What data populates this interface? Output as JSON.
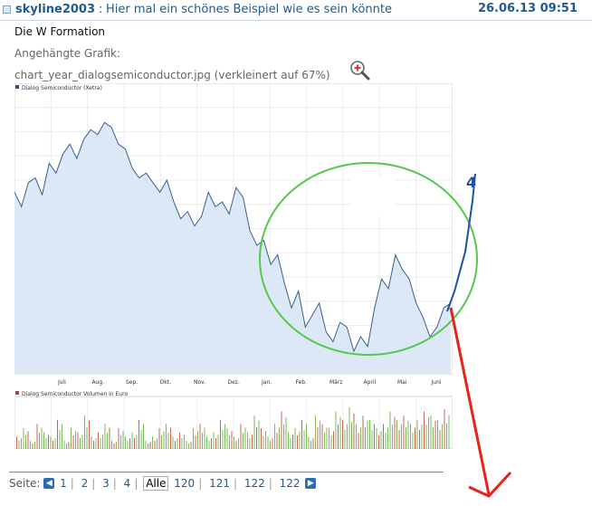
{
  "post": {
    "username": "skyline2003",
    "separator": ":",
    "subject": "Hier mal ein schönes Beispiel wie es sein könnte",
    "date": "26.06.13 09:51",
    "body_title": "Die W Formation",
    "attachment_label": "Angehängte Grafik:",
    "attachment_file": "chart_year_dialogsemiconductor.jpg (verkleinert auf 67%)"
  },
  "chart_data": {
    "type": "area",
    "title": "Dialog Semiconductor (Xetra)",
    "volume_title": "Dialog Semiconductor Volumen in Euro",
    "x_ticks": [
      "Juli",
      "Aug.",
      "Sep.",
      "Okt.",
      "Nov.",
      "Dez.",
      "Jan.",
      "Feb.",
      "März",
      "April",
      "Mai",
      "Juni"
    ],
    "price_series": {
      "name": "Dialog Semiconductor (Xetra)",
      "values": [
        0.66,
        0.6,
        0.7,
        0.72,
        0.65,
        0.78,
        0.74,
        0.82,
        0.86,
        0.8,
        0.88,
        0.92,
        0.9,
        0.95,
        0.93,
        0.86,
        0.84,
        0.76,
        0.72,
        0.74,
        0.7,
        0.66,
        0.71,
        0.62,
        0.55,
        0.58,
        0.52,
        0.56,
        0.66,
        0.6,
        0.62,
        0.57,
        0.68,
        0.64,
        0.5,
        0.44,
        0.46,
        0.36,
        0.4,
        0.28,
        0.18,
        0.25,
        0.1,
        0.15,
        0.2,
        0.08,
        0.04,
        0.12,
        0.1,
        0.0,
        0.06,
        0.02,
        0.18,
        0.3,
        0.26,
        0.4,
        0.34,
        0.3,
        0.2,
        0.14,
        0.06,
        0.1,
        0.18,
        0.2
      ]
    },
    "volume_series": {
      "name": "Dialog Semiconductor Volumen in Euro",
      "values": [
        0.3,
        0.5,
        0.2,
        0.6,
        0.4,
        0.3,
        0.7,
        0.2,
        0.5,
        0.4,
        0.8,
        0.3,
        0.4,
        0.6,
        0.2,
        0.5,
        0.3,
        0.4,
        0.7,
        0.2,
        0.3,
        0.5,
        0.6,
        0.3,
        0.4,
        0.2,
        0.5,
        0.6,
        0.3,
        0.4,
        0.7,
        0.5,
        0.3,
        0.6,
        0.4,
        0.8,
        0.5,
        0.3,
        0.6,
        0.9,
        0.4,
        0.5,
        0.7,
        0.3,
        0.8,
        0.6,
        0.5,
        0.9,
        0.7,
        1.0,
        0.6,
        0.8,
        0.7,
        0.5,
        0.6,
        0.9,
        0.7,
        0.8,
        0.6,
        0.7,
        0.9,
        0.8,
        0.7,
        0.95
      ]
    },
    "annotation_label": "4",
    "colors": {
      "area_fill": "#dde8f7",
      "price_line": "#3b5f8c",
      "projection_line": "#1f52a3",
      "ellipse": "#55c84a",
      "arrow": "#e8231a",
      "volume_bar_green": "#7ab85a",
      "volume_bar_red": "#c9635a"
    }
  },
  "pager": {
    "label": "Seite:",
    "pages": [
      "1",
      "2",
      "3",
      "4"
    ],
    "active": "Alle",
    "pages_after": [
      "120",
      "121",
      "122",
      "122"
    ]
  }
}
